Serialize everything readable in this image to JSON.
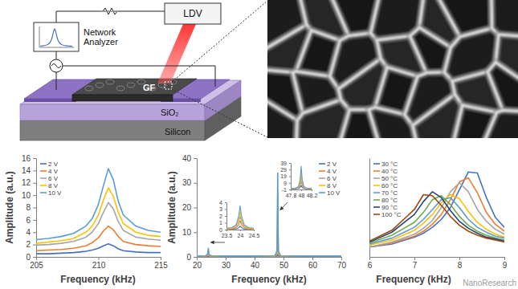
{
  "chart_data": [
    {
      "type": "line",
      "xlabel": "Frequency (kHz)",
      "ylabel": "Amplitude (a.u.)",
      "x": [
        205,
        206,
        207,
        208,
        209,
        209.5,
        210,
        210.4,
        210.8,
        211.2,
        211.6,
        212,
        213,
        214,
        215
      ],
      "xlim": [
        205,
        215
      ],
      "xticks": [
        205,
        210,
        215
      ],
      "ylim": [
        0,
        16
      ],
      "yticks": [
        0,
        2,
        4,
        6,
        8,
        10,
        12,
        14,
        16
      ],
      "legend": "upper left",
      "series": [
        {
          "name": "2 V",
          "color": "#4472c4",
          "values": [
            0.5,
            0.5,
            0.6,
            0.7,
            0.9,
            1.1,
            1.4,
            1.8,
            2.1,
            1.8,
            1.3,
            1.0,
            0.8,
            0.7,
            0.7
          ]
        },
        {
          "name": "4 V",
          "color": "#ed7d31",
          "values": [
            1.0,
            1.1,
            1.2,
            1.4,
            1.8,
            2.3,
            3.1,
            4.2,
            5.0,
            4.4,
            3.3,
            2.5,
            2.0,
            1.8,
            1.7
          ]
        },
        {
          "name": "6 V",
          "color": "#a5a5a5",
          "values": [
            1.9,
            2.0,
            2.2,
            2.5,
            3.2,
            4.0,
            5.4,
            7.2,
            8.8,
            7.8,
            5.7,
            4.3,
            3.2,
            2.9,
            2.7
          ]
        },
        {
          "name": "8 V",
          "color": "#ffc000",
          "values": [
            2.2,
            2.4,
            2.6,
            3.0,
            4.0,
            5.0,
            6.8,
            9.2,
            11.2,
            9.8,
            7.2,
            5.4,
            4.0,
            3.5,
            3.3
          ]
        },
        {
          "name": "10 V",
          "color": "#5b9bd5",
          "values": [
            2.8,
            3.0,
            3.3,
            3.8,
            5.0,
            6.2,
            8.5,
            11.5,
            14.3,
            12.5,
            9.0,
            6.8,
            5.0,
            4.3,
            4.0
          ]
        }
      ]
    },
    {
      "type": "line",
      "xlabel": "Frequency (kHz)",
      "ylabel": "Amplitude (a.u.)",
      "x": [
        20,
        23,
        23.8,
        24,
        24.2,
        25,
        30,
        40,
        47,
        47.8,
        48,
        48.2,
        49,
        55,
        60,
        65,
        70
      ],
      "xlim": [
        20,
        70
      ],
      "xticks": [
        20,
        30,
        40,
        50,
        60,
        70
      ],
      "ylim": [
        0,
        40
      ],
      "yticks": [
        0,
        10,
        20,
        30,
        40
      ],
      "legend": "upper right",
      "series": [
        {
          "name": "2 V",
          "color": "#4472c4",
          "values": [
            0.1,
            0.1,
            0.2,
            0.5,
            0.2,
            0.1,
            0.1,
            0.1,
            0.1,
            0.4,
            5,
            0.4,
            0.1,
            0.1,
            0.1,
            0.1,
            0.1
          ]
        },
        {
          "name": "4 V",
          "color": "#ed7d31",
          "values": [
            0.2,
            0.2,
            0.5,
            1.3,
            0.4,
            0.2,
            0.2,
            0.2,
            0.2,
            1.0,
            12,
            1.0,
            0.2,
            0.2,
            0.2,
            0.2,
            0.2
          ]
        },
        {
          "name": "6 V",
          "color": "#a5a5a5",
          "values": [
            0.2,
            0.3,
            0.7,
            2.0,
            0.6,
            0.3,
            0.2,
            0.2,
            0.3,
            1.5,
            19,
            1.5,
            0.3,
            0.2,
            0.2,
            0.2,
            0.2
          ]
        },
        {
          "name": "8 V",
          "color": "#ffc000",
          "values": [
            0.3,
            0.3,
            1.0,
            2.7,
            0.8,
            0.3,
            0.3,
            0.3,
            0.3,
            2.0,
            26,
            2.0,
            0.3,
            0.3,
            0.3,
            0.3,
            0.3
          ]
        },
        {
          "name": "10 V",
          "color": "#5b9bd5",
          "values": [
            0.3,
            0.4,
            1.2,
            3.5,
            1.0,
            0.4,
            0.3,
            0.3,
            0.4,
            2.5,
            34,
            2.5,
            0.4,
            0.3,
            0.3,
            0.3,
            0.3
          ]
        }
      ]
    },
    {
      "type": "line",
      "x": [
        23.5,
        23.7,
        23.85,
        23.95,
        24,
        24.05,
        24.15,
        24.3,
        24.5
      ],
      "xlim": [
        23.5,
        24.5
      ],
      "xticks": [
        23.5,
        24,
        24.5
      ],
      "ylim": [
        0,
        4
      ],
      "yticks": [
        0,
        1,
        2,
        3,
        4
      ],
      "series": [
        {
          "color": "#4472c4",
          "values": [
            0.0,
            0.1,
            0.1,
            0.3,
            0.5,
            0.3,
            0.1,
            0.1,
            0.0
          ]
        },
        {
          "color": "#ed7d31",
          "values": [
            0.1,
            0.1,
            0.3,
            0.7,
            1.3,
            0.7,
            0.3,
            0.1,
            0.1
          ]
        },
        {
          "color": "#a5a5a5",
          "values": [
            0.1,
            0.2,
            0.4,
            1.1,
            2.0,
            1.1,
            0.4,
            0.2,
            0.1
          ]
        },
        {
          "color": "#ffc000",
          "values": [
            0.1,
            0.2,
            0.5,
            1.5,
            2.7,
            1.5,
            0.5,
            0.2,
            0.1
          ]
        },
        {
          "color": "#5b9bd5",
          "values": [
            0.2,
            0.3,
            0.7,
            2.0,
            3.5,
            2.0,
            0.7,
            0.3,
            0.2
          ]
        }
      ]
    },
    {
      "type": "line",
      "x": [
        47.8,
        47.9,
        47.95,
        47.98,
        48,
        48.02,
        48.05,
        48.1,
        48.2
      ],
      "xlim": [
        47.8,
        48.2
      ],
      "xticks": [
        47.8,
        48,
        48.2
      ],
      "ylim": [
        -1,
        39
      ],
      "yticks": [
        -1,
        9,
        19,
        29,
        39
      ],
      "series": [
        {
          "color": "#4472c4",
          "values": [
            0.1,
            0.2,
            0.5,
            2,
            5,
            2,
            0.5,
            0.2,
            0.1
          ]
        },
        {
          "color": "#ed7d31",
          "values": [
            0.2,
            0.4,
            1.3,
            5,
            12,
            5,
            1.3,
            0.4,
            0.2
          ]
        },
        {
          "color": "#a5a5a5",
          "values": [
            0.2,
            0.6,
            2.0,
            8,
            19,
            8,
            2.0,
            0.6,
            0.2
          ]
        },
        {
          "color": "#ffc000",
          "values": [
            0.3,
            0.8,
            2.7,
            11,
            26,
            11,
            2.7,
            0.8,
            0.3
          ]
        },
        {
          "color": "#5b9bd5",
          "values": [
            0.3,
            1.0,
            3.5,
            14,
            34,
            14,
            3.5,
            1.0,
            0.3
          ]
        }
      ]
    },
    {
      "type": "line",
      "xlabel": "Frequency (kHz)",
      "x": [
        6.0,
        6.5,
        7.0,
        7.2,
        7.4,
        7.6,
        7.8,
        8.0,
        8.2,
        8.4,
        8.6,
        8.8,
        9.0
      ],
      "xlim": [
        6,
        9
      ],
      "xticks": [
        6,
        7,
        8,
        9
      ],
      "ylim": [
        0,
        10
      ],
      "tick_labels": "x",
      "legend": "upper left",
      "series": [
        {
          "name": "30 °C",
          "color": "#4472c4",
          "values": [
            1.0,
            1.3,
            2.0,
            2.4,
            3.0,
            3.8,
            5.0,
            6.8,
            8.6,
            8.5,
            6.0,
            4.0,
            3.0
          ]
        },
        {
          "name": "40 °C",
          "color": "#ed7d31",
          "values": [
            1.0,
            1.4,
            2.1,
            2.6,
            3.3,
            4.3,
            5.8,
            7.6,
            8.0,
            6.5,
            4.5,
            3.3,
            2.6
          ]
        },
        {
          "name": "50 °C",
          "color": "#a5a5a5",
          "values": [
            1.0,
            1.5,
            2.3,
            2.9,
            3.7,
            5.0,
            6.6,
            7.5,
            6.6,
            4.8,
            3.6,
            2.8,
            2.3
          ]
        },
        {
          "name": "60 °C",
          "color": "#ffc000",
          "values": [
            1.2,
            1.7,
            2.7,
            3.4,
            4.3,
            5.5,
            6.3,
            5.9,
            4.6,
            3.5,
            2.8,
            2.3,
            2.0
          ]
        },
        {
          "name": "70 °C",
          "color": "#5b9bd5",
          "values": [
            1.3,
            1.9,
            3.0,
            3.8,
            4.8,
            5.8,
            6.0,
            5.0,
            3.8,
            3.0,
            2.5,
            2.1,
            1.9
          ]
        },
        {
          "name": "80 °C",
          "color": "#70ad47",
          "values": [
            1.4,
            2.2,
            3.5,
            4.5,
            5.8,
            6.2,
            5.3,
            4.1,
            3.2,
            2.6,
            2.2,
            1.9,
            1.7
          ]
        },
        {
          "name": "90 °C",
          "color": "#264478",
          "values": [
            1.5,
            2.5,
            4.3,
            5.6,
            6.6,
            6.0,
            4.7,
            3.6,
            2.9,
            2.4,
            2.0,
            1.8,
            1.6
          ]
        },
        {
          "name": "100 °C",
          "color": "#9e480e",
          "values": [
            1.6,
            2.7,
            4.8,
            6.3,
            6.2,
            5.2,
            4.1,
            3.2,
            2.6,
            2.2,
            1.9,
            1.7,
            1.5
          ]
        }
      ]
    }
  ],
  "diagram": {
    "instrument": "LDV",
    "analyzer": [
      "Network",
      "Analyzer"
    ],
    "sample": "GF",
    "oxide": "SiO₂",
    "substrate": "Silicon"
  },
  "watermark": "NanoResearch"
}
